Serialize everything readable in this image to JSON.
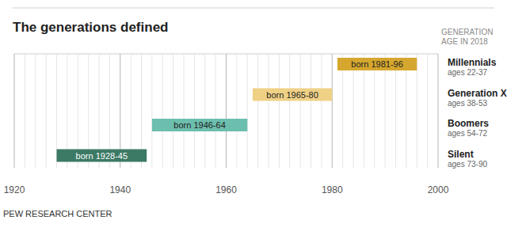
{
  "chart_data": {
    "type": "bar",
    "orientation": "horizontal",
    "title": "The generations defined",
    "subtitle": "GENERATION AGE IN 2018",
    "source": "PEW RESEARCH CENTER",
    "categories": [
      "Millennials",
      "Generation X",
      "Boomers",
      "Silent"
    ],
    "category_notes": [
      "ages 22-37",
      "ages 38-53",
      "ages 54-72",
      "ages 73-90"
    ],
    "starts": [
      1981,
      1965,
      1946,
      1928
    ],
    "values": [
      1996,
      1980,
      1964,
      1945
    ],
    "value_labels": [
      "born 1981-96",
      "born 1965-80",
      "born 1946-64",
      "born 1928-45"
    ],
    "data_labels": true,
    "colors": [
      "#d5a72e",
      "#efd186",
      "#6cbfae",
      "#3c7a66"
    ],
    "xlim": [
      1920,
      2000
    ],
    "xticks": [
      1920,
      1940,
      1960,
      1980,
      2000
    ],
    "grid": true
  }
}
